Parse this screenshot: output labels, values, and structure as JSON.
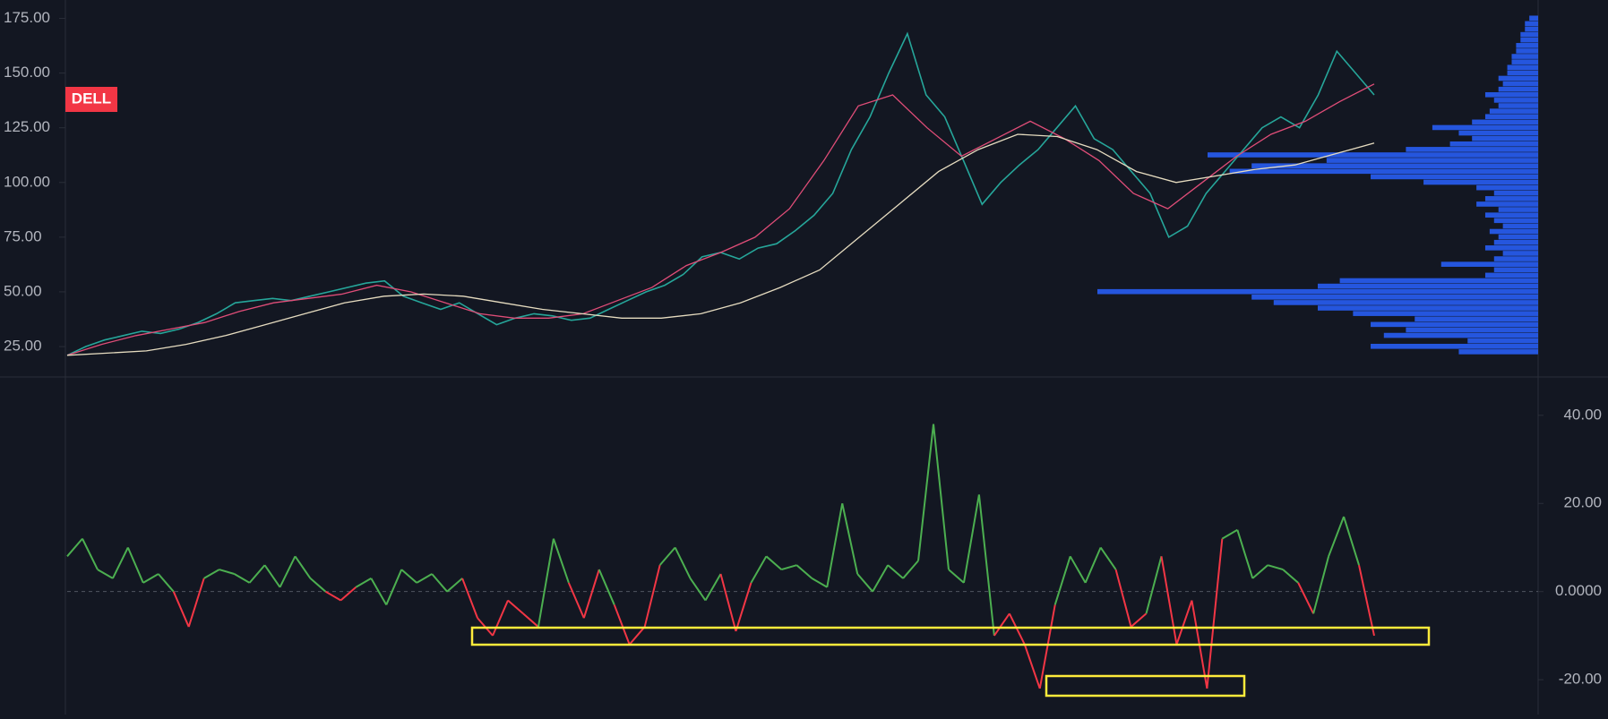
{
  "chart_data": [
    {
      "type": "line",
      "symbol": "DELL",
      "ylim": [
        11.1,
        183.4
      ],
      "yticks": [
        {
          "value": 25,
          "label": "25.00"
        },
        {
          "value": 50,
          "label": "50.00"
        },
        {
          "value": 75,
          "label": "75.00"
        },
        {
          "value": 100,
          "label": "100.00"
        },
        {
          "value": 125,
          "label": "125.00"
        },
        {
          "value": 150,
          "label": "150.00"
        },
        {
          "value": 175,
          "label": "175.00"
        }
      ],
      "series": [
        {
          "name": "price",
          "color": "#26a69a",
          "values": [
            21,
            25,
            28,
            30,
            32,
            31,
            33,
            36,
            40,
            45,
            46,
            47,
            46,
            48,
            50,
            52,
            54,
            55,
            48,
            45,
            42,
            45,
            40,
            35,
            38,
            40,
            39,
            37,
            38,
            42,
            46,
            50,
            53,
            58,
            66,
            68,
            65,
            70,
            72,
            78,
            85,
            95,
            115,
            130,
            150,
            168,
            140,
            130,
            110,
            90,
            100,
            108,
            115,
            125,
            135,
            120,
            115,
            105,
            95,
            75,
            80,
            95,
            105,
            115,
            125,
            130,
            125,
            140,
            160,
            150,
            140
          ]
        },
        {
          "name": "ma-fast",
          "color": "#e04d78",
          "values": [
            21,
            26,
            30,
            33,
            36,
            41,
            45,
            47,
            49,
            53,
            50,
            45,
            40,
            38,
            38,
            40,
            46,
            52,
            62,
            68,
            75,
            88,
            110,
            135,
            140,
            125,
            112,
            120,
            128,
            120,
            110,
            95,
            88,
            100,
            112,
            122,
            128,
            137,
            145
          ]
        },
        {
          "name": "ma-200",
          "color": "#e6dcc0",
          "values": [
            21,
            22,
            23,
            26,
            30,
            35,
            40,
            45,
            48,
            49,
            48,
            45,
            42,
            40,
            38,
            38,
            40,
            45,
            52,
            60,
            75,
            90,
            105,
            115,
            122,
            121,
            115,
            105,
            100,
            103,
            106,
            108,
            113,
            118
          ]
        }
      ],
      "volume_profile": {
        "color": "#2962ff",
        "xlim": [
          0,
          100
        ],
        "levels": [
          22.5,
          25,
          27.5,
          30,
          32.5,
          35,
          37.5,
          40,
          42.5,
          45,
          47.5,
          50,
          52.5,
          55,
          57.5,
          60,
          62.5,
          65,
          67.5,
          70,
          72.5,
          75,
          77.5,
          80,
          82.5,
          85,
          87.5,
          90,
          92.5,
          95,
          97.5,
          100,
          102.5,
          105,
          107.5,
          110,
          112.5,
          115,
          117.5,
          120,
          122.5,
          125,
          127.5,
          130,
          132.5,
          135,
          137.5,
          140,
          142.5,
          145,
          147.5,
          150,
          152.5,
          155,
          157.5,
          160,
          162.5,
          165,
          167.5,
          170,
          172.5,
          175
        ],
        "values": [
          18,
          38,
          16,
          35,
          30,
          38,
          28,
          42,
          50,
          60,
          65,
          100,
          50,
          45,
          12,
          10,
          22,
          10,
          8,
          12,
          10,
          9,
          11,
          8,
          10,
          12,
          9,
          14,
          12,
          10,
          14,
          26,
          38,
          70,
          65,
          48,
          75,
          30,
          20,
          15,
          18,
          24,
          15,
          12,
          11,
          9,
          10,
          12,
          9,
          8,
          9,
          7,
          7,
          6,
          6,
          5,
          5,
          4,
          4,
          3,
          3,
          2
        ]
      }
    },
    {
      "type": "line",
      "ylim": [
        -27.9,
        48.7
      ],
      "yticks": [
        {
          "value": 40,
          "label": "40.00"
        },
        {
          "value": 20,
          "label": "20.00"
        },
        {
          "value": 0,
          "label": "0.0000"
        },
        {
          "value": -20,
          "label": "-20.00"
        }
      ],
      "series": [
        {
          "name": "oscillator",
          "color": "#4caf50",
          "negative_color": "#f23645",
          "values": [
            8,
            12,
            5,
            3,
            10,
            2,
            4,
            0,
            -8,
            3,
            5,
            4,
            2,
            6,
            1,
            8,
            3,
            0,
            -2,
            1,
            3,
            -3,
            5,
            2,
            4,
            0,
            3,
            -6,
            -10,
            -2,
            -5,
            -8,
            12,
            2,
            -6,
            5,
            -3,
            -12,
            -8,
            6,
            10,
            3,
            -2,
            4,
            -9,
            2,
            8,
            5,
            6,
            3,
            1,
            20,
            4,
            0,
            6,
            3,
            7,
            38,
            5,
            2,
            22,
            -10,
            -5,
            -12,
            -22,
            -3,
            8,
            2,
            10,
            5,
            -8,
            -5,
            8,
            -12,
            -2,
            -22,
            12,
            14,
            3,
            6,
            5,
            2,
            -5,
            8,
            17,
            6,
            -10
          ]
        }
      ]
    }
  ]
}
